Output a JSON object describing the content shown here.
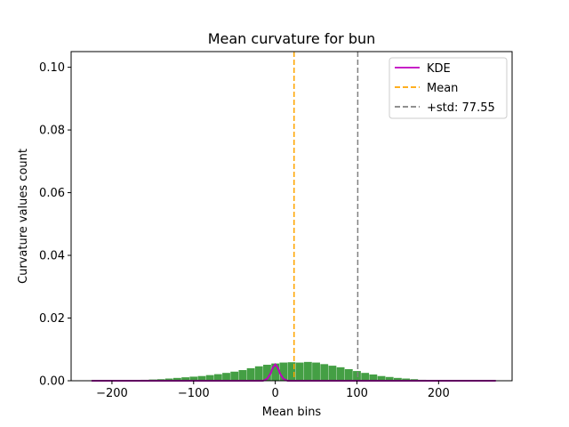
{
  "chart_data": {
    "type": "bar",
    "title": "Mean curvature for bun",
    "xlabel": "Mean bins",
    "ylabel": "Curvature values count",
    "xlim": [
      -250,
      290
    ],
    "ylim": [
      0,
      0.105
    ],
    "x_ticks": [
      -200,
      -100,
      0,
      100,
      200
    ],
    "x_tick_labels": [
      "−200",
      "−100",
      "0",
      "100",
      "200"
    ],
    "y_ticks": [
      0.0,
      0.02,
      0.04,
      0.06,
      0.08,
      0.1
    ],
    "y_tick_labels": [
      "0.00",
      "0.02",
      "0.04",
      "0.06",
      "0.08",
      "0.10"
    ],
    "bar_color": "#3a9a3a",
    "bin_width": 9.6,
    "histogram": {
      "x": [
        -220,
        -210,
        -200,
        -190,
        -180,
        -170,
        -160,
        -150,
        -140,
        -130,
        -120,
        -110,
        -100,
        -90,
        -80,
        -70,
        -60,
        -50,
        -40,
        -30,
        -20,
        -10,
        0,
        10,
        20,
        30,
        40,
        50,
        60,
        70,
        80,
        90,
        100,
        110,
        120,
        130,
        140,
        150,
        160,
        170,
        180,
        190,
        200,
        210,
        220,
        230,
        240,
        250,
        260
      ],
      "values": [
        0.0001,
        0.0001,
        0.0001,
        0.0001,
        0.0001,
        0.0002,
        0.0003,
        0.0004,
        0.0005,
        0.0007,
        0.0009,
        0.0011,
        0.0013,
        0.0015,
        0.0018,
        0.0021,
        0.0025,
        0.0029,
        0.0034,
        0.004,
        0.0046,
        0.0051,
        0.0055,
        0.0058,
        0.0059,
        0.0058,
        0.006,
        0.0058,
        0.0053,
        0.0048,
        0.0043,
        0.0037,
        0.0031,
        0.0025,
        0.002,
        0.0015,
        0.0012,
        0.0009,
        0.0007,
        0.0005,
        0.0003,
        0.0002,
        0.0002,
        0.0001,
        0.0001,
        0.0001,
        0.0001,
        0.0001,
        0.0001
      ]
    },
    "kde": {
      "name": "KDE",
      "color": "#bf00bf",
      "x": [
        -225,
        -15,
        -10,
        -6,
        -3,
        0,
        3,
        6,
        10,
        15,
        270
      ],
      "y": [
        0.0,
        0.0,
        0.0006,
        0.0022,
        0.0042,
        0.0052,
        0.0042,
        0.0022,
        0.0006,
        0.0,
        0.0
      ]
    },
    "lines": [
      {
        "name": "Mean",
        "x": 23,
        "color": "#ffa500",
        "style": "dashed"
      },
      {
        "name": "+std: 77.55",
        "x": 101,
        "color": "#808080",
        "style": "dashed"
      }
    ],
    "legend": {
      "placement": "top-right",
      "entries": [
        {
          "label": "KDE",
          "color": "#bf00bf",
          "style": "solid"
        },
        {
          "label": "Mean",
          "color": "#ffa500",
          "style": "dashed"
        },
        {
          "label": "+std: 77.55",
          "color": "#808080",
          "style": "dashed"
        }
      ]
    }
  }
}
